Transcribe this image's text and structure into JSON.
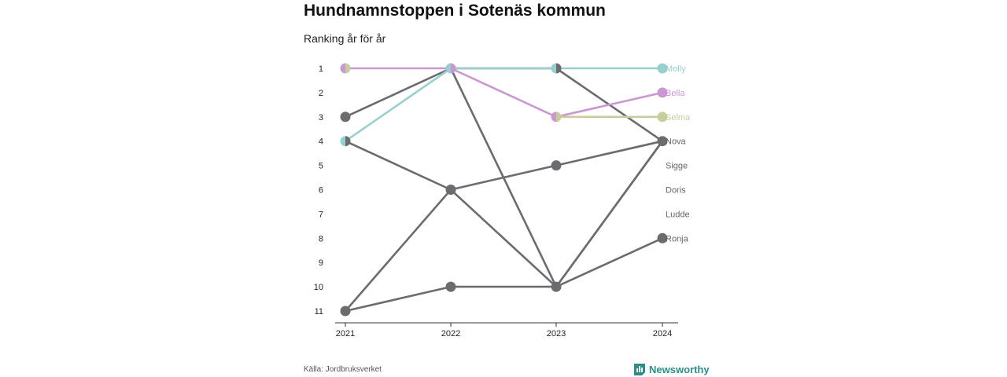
{
  "title": "Hundnamnstoppen i Sotenäs kommun",
  "subtitle": "Ranking år för år",
  "source": "Källa: Jordbruksverket",
  "brand": "Newsworthy",
  "colors": {
    "molly": "#98cfcf",
    "bella": "#cb97d3",
    "selma": "#c9cd9e",
    "other": "#6b6b70",
    "axis": "#333333",
    "brand": "#2a8f8a"
  },
  "chart_data": {
    "type": "line",
    "x": [
      "2021",
      "2022",
      "2023",
      "2024"
    ],
    "y_ticks": [
      1,
      2,
      3,
      4,
      5,
      6,
      7,
      8,
      9,
      10,
      11
    ],
    "y_reversed": true,
    "series": [
      {
        "name": "Molly",
        "color": "#98cfcf",
        "highlight": true,
        "values": [
          4,
          1,
          1,
          1
        ]
      },
      {
        "name": "Bella",
        "color": "#cb97d3",
        "highlight": true,
        "values": [
          1,
          1,
          3,
          2
        ]
      },
      {
        "name": "Selma",
        "color": "#c9cd9e",
        "highlight": true,
        "values": [
          1,
          null,
          3,
          3
        ]
      },
      {
        "name": "Nova",
        "color": "#6b6b70",
        "highlight": false,
        "values": [
          3,
          1,
          1,
          4
        ]
      },
      {
        "name": "Sigge",
        "color": "#6b6b70",
        "highlight": false,
        "values": [
          4,
          6,
          10,
          4
        ]
      },
      {
        "name": "Doris",
        "color": "#6b6b70",
        "highlight": false,
        "values": [
          11,
          6,
          5,
          4
        ]
      },
      {
        "name": "Ludde",
        "color": "#6b6b70",
        "highlight": false,
        "values": [
          null,
          1,
          10,
          4
        ]
      },
      {
        "name": "Ronja",
        "color": "#6b6b70",
        "highlight": false,
        "values": [
          11,
          10,
          10,
          8
        ]
      }
    ],
    "end_labels": [
      "Molly",
      "Bella",
      "Selma",
      "Nova",
      "Sigge",
      "Doris",
      "Ludde",
      "Ronja"
    ],
    "grid": false
  }
}
